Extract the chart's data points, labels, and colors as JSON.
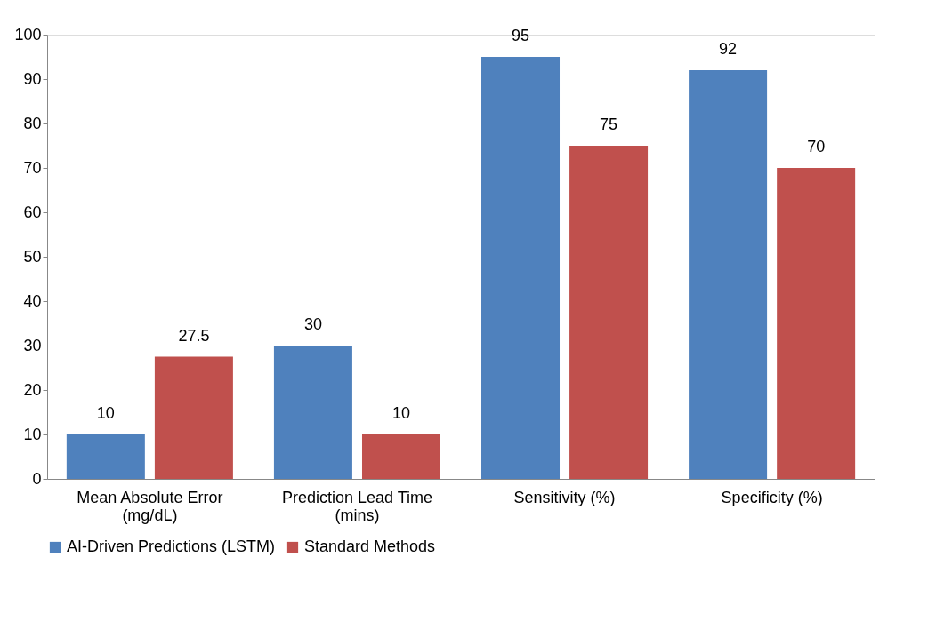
{
  "chart_data": {
    "type": "bar",
    "categories": [
      "Mean Absolute Error (mg/dL)",
      "Prediction Lead Time (mins)",
      "Sensitivity (%)",
      "Specificity (%)"
    ],
    "series": [
      {
        "name": "AI-Driven Predictions (LSTM)",
        "color": "#4f81bd",
        "values": [
          10,
          30,
          95,
          92
        ]
      },
      {
        "name": "Standard Methods",
        "color": "#c0504d",
        "values": [
          27.5,
          10,
          75,
          70
        ]
      }
    ],
    "ylim": [
      0,
      100
    ],
    "yticks": [
      0,
      10,
      20,
      30,
      40,
      50,
      60,
      70,
      80,
      90,
      100
    ],
    "grid": false,
    "legend": "bottom",
    "data_labels": true
  }
}
